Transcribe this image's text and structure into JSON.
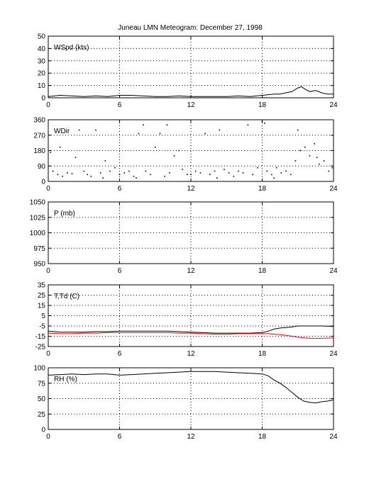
{
  "title": "Juneau LMN Meteogram:   December 27, 1998",
  "colors": {
    "primary": "#000000",
    "dewpoint": "#ff0000"
  },
  "chart_data": [
    {
      "type": "line",
      "label": "WSpd (kts)",
      "xlim": [
        0,
        24
      ],
      "xticks": [
        "0",
        "6",
        "12",
        "18",
        "24"
      ],
      "ylim": [
        0,
        50
      ],
      "yticks": [
        "0",
        "10",
        "20",
        "30",
        "40",
        "50"
      ],
      "grid": true,
      "series": [
        {
          "color": "#000000",
          "x": [
            0,
            1,
            2,
            3,
            4,
            5,
            6,
            7,
            8,
            9,
            10,
            11,
            12,
            13,
            14,
            15,
            16,
            17,
            18,
            19,
            19.5,
            20,
            20.5,
            21,
            21.3,
            21.6,
            22,
            22.5,
            23,
            23.5,
            24
          ],
          "y": [
            1,
            2,
            1.5,
            1,
            1.5,
            1,
            2,
            2,
            1.5,
            1,
            1,
            1.5,
            1,
            1,
            1,
            1,
            1.5,
            1,
            2,
            3,
            3,
            4,
            5,
            8,
            9,
            7,
            5,
            6,
            4,
            3,
            3
          ]
        }
      ]
    },
    {
      "type": "scatter",
      "label": "WDir",
      "xlim": [
        0,
        24
      ],
      "xticks": [
        "0",
        "6",
        "12",
        "18",
        "24"
      ],
      "ylim": [
        0,
        360
      ],
      "yticks": [
        "0",
        "90",
        "180",
        "270",
        "360"
      ],
      "grid": true,
      "series": [
        {
          "color": "#000000",
          "x": [
            0.2,
            0.4,
            0.8,
            1.2,
            1.6,
            2.0,
            2.3,
            2.6,
            3.0,
            3.3,
            3.6,
            4.0,
            4.4,
            4.8,
            5.2,
            5.6,
            6.0,
            6.4,
            6.8,
            7.2,
            7.6,
            8.0,
            8.2,
            8.6,
            9.0,
            9.4,
            9.8,
            10.2,
            10.6,
            11.0,
            11.3,
            11.7,
            12.0,
            12.4,
            12.8,
            13.2,
            13.6,
            14.0,
            14.4,
            14.8,
            15.2,
            15.6,
            16.0,
            16.4,
            16.8,
            17.2,
            17.6,
            18.0,
            18.4,
            18.8,
            19.2,
            19.6,
            20.0,
            20.4,
            20.8,
            21.2,
            21.6,
            22.0,
            22.4,
            22.8,
            23.2,
            23.6,
            23.9,
            1.0,
            4.6,
            7.4,
            10.0,
            14.2,
            18.2,
            19.0,
            21.0,
            22.6
          ],
          "y": [
            170,
            60,
            40,
            30,
            50,
            45,
            140,
            300,
            60,
            40,
            30,
            300,
            50,
            120,
            60,
            80,
            40,
            50,
            60,
            30,
            280,
            330,
            60,
            40,
            200,
            280,
            30,
            50,
            150,
            180,
            70,
            40,
            40,
            60,
            50,
            280,
            40,
            60,
            300,
            70,
            50,
            30,
            60,
            50,
            330,
            40,
            80,
            350,
            60,
            40,
            80,
            50,
            60,
            40,
            120,
            180,
            200,
            150,
            220,
            100,
            120,
            60,
            80,
            200,
            20,
            20,
            330,
            20,
            340,
            20,
            300,
            140
          ]
        }
      ]
    },
    {
      "type": "line",
      "label": "P (mb)",
      "xlim": [
        0,
        24
      ],
      "xticks": [
        "0",
        "6",
        "12",
        "18",
        "24"
      ],
      "ylim": [
        950,
        1050
      ],
      "yticks": [
        "950",
        "975",
        "1000",
        "1025",
        "1050"
      ],
      "grid": true,
      "series": []
    },
    {
      "type": "line",
      "label": "T,Td (C)",
      "xlim": [
        0,
        24
      ],
      "xticks": [
        "0",
        "6",
        "12",
        "18",
        "24"
      ],
      "ylim": [
        -25,
        35
      ],
      "yticks": [
        "-25",
        "-15",
        "-5",
        "5",
        "15",
        "25",
        "35"
      ],
      "grid": true,
      "series": [
        {
          "color": "#000000",
          "x": [
            0,
            1,
            2,
            3,
            4,
            5,
            6,
            7,
            8,
            9,
            10,
            11,
            12,
            13,
            14,
            15,
            16,
            17,
            18,
            18.5,
            19,
            19.5,
            20,
            20.5,
            21,
            21.5,
            22,
            23,
            24
          ],
          "y": [
            -10,
            -11,
            -11,
            -11,
            -10.5,
            -10.5,
            -10,
            -10,
            -10,
            -10,
            -10,
            -10.5,
            -11,
            -11.5,
            -12,
            -12,
            -12,
            -12,
            -11.5,
            -10,
            -8,
            -7,
            -6.5,
            -6,
            -5,
            -5,
            -5,
            -5,
            -5.5
          ]
        },
        {
          "color": "#ff0000",
          "x": [
            0,
            1,
            2,
            3,
            4,
            5,
            6,
            7,
            8,
            9,
            10,
            11,
            12,
            13,
            14,
            15,
            16,
            17,
            18,
            18.5,
            19,
            19.5,
            20,
            20.5,
            21,
            21.5,
            22,
            23,
            24
          ],
          "y": [
            -12,
            -12.5,
            -12.5,
            -12,
            -12,
            -11.5,
            -11.5,
            -11.5,
            -11.5,
            -11.5,
            -11.5,
            -12,
            -12,
            -12.5,
            -13,
            -13,
            -12.5,
            -12.5,
            -12.5,
            -12.5,
            -13,
            -13.5,
            -14,
            -15,
            -16,
            -16.5,
            -17,
            -17,
            -16.5
          ]
        }
      ]
    },
    {
      "type": "line",
      "label": "RH (%)",
      "xlim": [
        0,
        24
      ],
      "xticks": [
        "0",
        "6",
        "12",
        "18",
        "24"
      ],
      "ylim": [
        0,
        100
      ],
      "yticks": [
        "0",
        "25",
        "50",
        "75",
        "100"
      ],
      "grid": true,
      "series": [
        {
          "color": "#000000",
          "x": [
            0,
            1,
            2,
            3,
            4,
            5,
            6,
            7,
            8,
            9,
            10,
            11,
            12,
            13,
            14,
            15,
            16,
            17,
            18,
            18.5,
            19,
            19.5,
            20,
            20.5,
            21,
            21.5,
            22,
            22.5,
            23,
            23.5,
            24
          ],
          "y": [
            88,
            89,
            90,
            89,
            90,
            90,
            88,
            89,
            90,
            91,
            92,
            93,
            94,
            94,
            94,
            93,
            92,
            91,
            90,
            87,
            80,
            75,
            68,
            60,
            52,
            46,
            44,
            43,
            45,
            46,
            48
          ]
        }
      ]
    }
  ]
}
